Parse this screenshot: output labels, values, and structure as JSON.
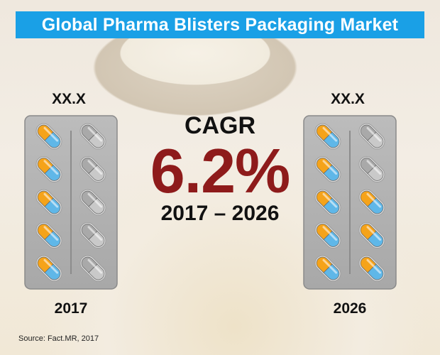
{
  "title": "Global Pharma Blisters Packaging Market",
  "chart_data": {
    "type": "pictorial",
    "cagr_label": "CAGR",
    "cagr_value": "6.2%",
    "period": "2017 – 2026",
    "categories": [
      "2017",
      "2026"
    ],
    "values": [
      "XX.X",
      "XX.X"
    ],
    "filled_pills": [
      5,
      8
    ],
    "total_pills": 10
  },
  "source": "Source: Fact.MR, 2017",
  "colors": {
    "title_bar": "#1aa0e6",
    "cagr_value": "#8e1b1b",
    "pill_orange": "#f5a31a",
    "pill_blue": "#5fb7e8",
    "pill_gray": "#a9a9a9",
    "blister_tray": "#a8a8a8"
  }
}
